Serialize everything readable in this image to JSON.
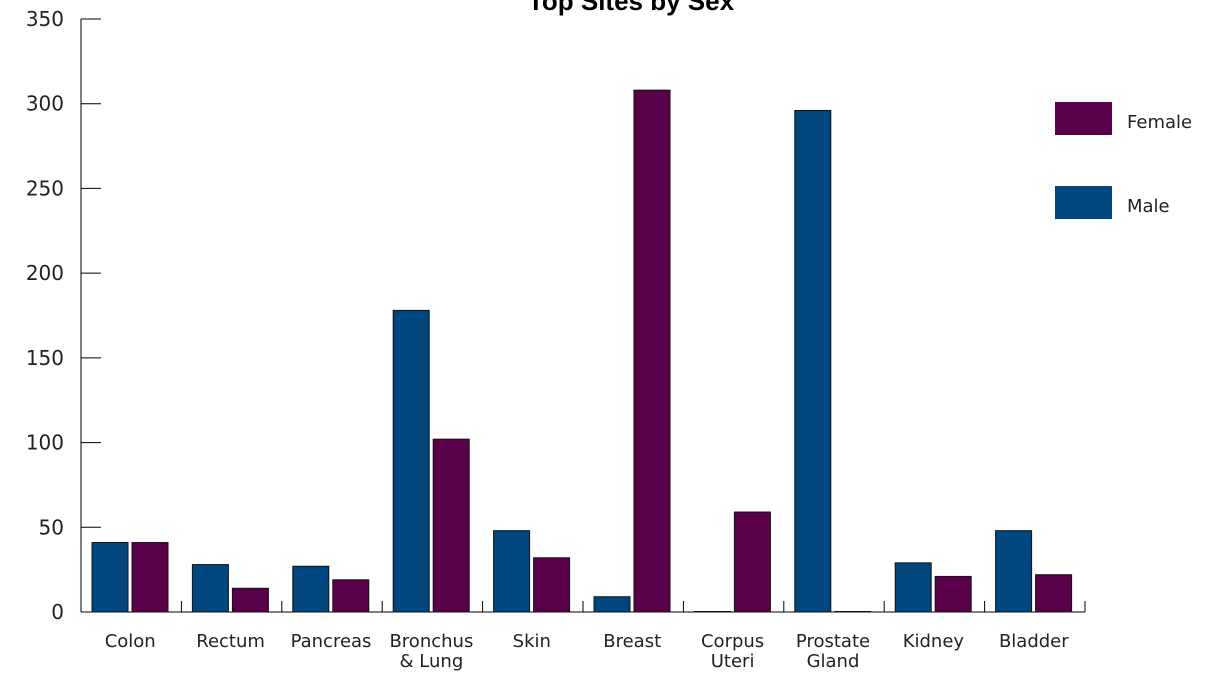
{
  "chart_data": {
    "type": "bar",
    "title": "Top Sites by Sex",
    "xlabel": "",
    "ylabel": "",
    "ylim": [
      0,
      350
    ],
    "yticks": [
      0,
      50,
      100,
      150,
      200,
      250,
      300,
      350
    ],
    "grid": false,
    "legend_position": "right",
    "categories": [
      [
        "Colon"
      ],
      [
        "Rectum"
      ],
      [
        "Pancreas"
      ],
      [
        "Bronchus",
        "& Lung"
      ],
      [
        "Skin"
      ],
      [
        "Breast"
      ],
      [
        "Corpus",
        "Uteri"
      ],
      [
        "Prostate",
        "Gland"
      ],
      [
        "Kidney"
      ],
      [
        "Bladder"
      ]
    ],
    "series": [
      {
        "name": "Male",
        "color": "#00467f",
        "values": [
          41,
          28,
          27,
          178,
          48,
          9,
          0,
          296,
          29,
          48
        ]
      },
      {
        "name": "Female",
        "color": "#5a004a",
        "values": [
          41,
          14,
          19,
          102,
          32,
          308,
          59,
          0,
          21,
          22
        ]
      }
    ],
    "legend_order": [
      "Female",
      "Male"
    ]
  }
}
